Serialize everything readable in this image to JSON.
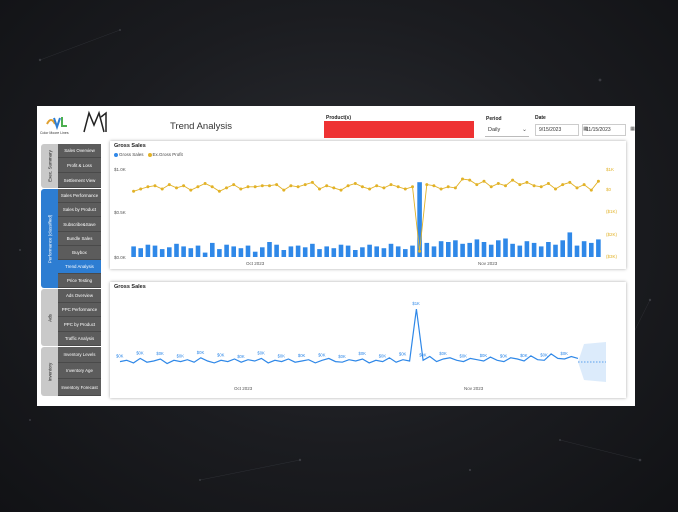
{
  "header": {
    "logo_name": "Color Moore Lines",
    "page_title": "Trend Analysis",
    "product_label": "Product(s)",
    "period_label": "Period",
    "period_value": "Daily",
    "date_label": "Date",
    "date_start": "9/15/2023",
    "date_end": "11/15/2023"
  },
  "sidebar": {
    "groups": [
      {
        "label": "Exec. Summary",
        "active": false
      },
      {
        "label": "Performance (classified)",
        "active": true
      },
      {
        "label": "Ads",
        "active": false
      },
      {
        "label": "Inventory",
        "active": false
      }
    ],
    "items": [
      {
        "label": "Sales Overview",
        "active": false
      },
      {
        "label": "Profit & Loss",
        "active": false
      },
      {
        "label": "Settlement View",
        "active": false
      },
      {
        "label": "Sales Performance",
        "active": false
      },
      {
        "label": "Sales by Product",
        "active": false
      },
      {
        "label": "Subscribe&Save",
        "active": false
      },
      {
        "label": "Bundle Sales",
        "active": false
      },
      {
        "label": "Buybox",
        "active": false
      },
      {
        "label": "Trend Analysis",
        "active": true
      },
      {
        "label": "Price Testing",
        "active": false
      },
      {
        "label": "Ads Overview",
        "active": false
      },
      {
        "label": "PPC Performance",
        "active": false
      },
      {
        "label": "PPC by Product",
        "active": false
      },
      {
        "label": "Traffic Analysis",
        "active": false
      },
      {
        "label": "Inventory Levels",
        "active": false
      },
      {
        "label": "Inventory Age",
        "active": false
      },
      {
        "label": "Inventory Forecast",
        "active": false
      }
    ]
  },
  "colors": {
    "bar": "#2f88e8",
    "profit": "#e2b227",
    "line": "#2f88e8",
    "forecast": "#dcebfb",
    "accent": "#2d7dd2",
    "product_box": "#ee3233"
  },
  "chart_data": [
    {
      "type": "bar",
      "title": "Gross Sales",
      "legend": [
        "Gross Sales",
        "Ex.Gross Profit"
      ],
      "x_ticks": [
        "Oct 2023",
        "Nov 2023"
      ],
      "y_ticks_left": [
        "$1.0K",
        "$0.5K",
        "$0.0K"
      ],
      "y_ticks_right": [
        "$1K",
        "$0",
        "($1K)",
        "($2K)",
        "($3K)"
      ],
      "ylim_left": [
        0,
        1
      ],
      "ylim_right": [
        -3,
        1
      ],
      "series": [
        {
          "name": "Gross Sales",
          "values": [
            0.12,
            0.1,
            0.14,
            0.13,
            0.09,
            0.11,
            0.15,
            0.12,
            0.1,
            0.13,
            0.05,
            0.16,
            0.09,
            0.14,
            0.12,
            0.1,
            0.13,
            0.06,
            0.11,
            0.17,
            0.14,
            0.08,
            0.12,
            0.13,
            0.11,
            0.15,
            0.09,
            0.12,
            0.1,
            0.14,
            0.13,
            0.08,
            0.11,
            0.14,
            0.12,
            0.1,
            0.15,
            0.12,
            0.09,
            0.13,
            0.85,
            0.16,
            0.12,
            0.18,
            0.17,
            0.19,
            0.15,
            0.16,
            0.2,
            0.17,
            0.14,
            0.19,
            0.21,
            0.15,
            0.13,
            0.18,
            0.16,
            0.12,
            0.17,
            0.14,
            0.19,
            0.28,
            0.13,
            0.18,
            0.16,
            0.2
          ]
        },
        {
          "name": "Ex.Gross Profit",
          "values": [
            0.0,
            0.1,
            0.2,
            0.25,
            0.1,
            0.3,
            0.15,
            0.25,
            0.05,
            0.2,
            0.35,
            0.2,
            0.0,
            0.15,
            0.3,
            0.1,
            0.2,
            0.2,
            0.25,
            0.25,
            0.3,
            0.05,
            0.25,
            0.2,
            0.3,
            0.4,
            0.1,
            0.25,
            0.15,
            0.05,
            0.25,
            0.35,
            0.2,
            0.1,
            0.25,
            0.15,
            0.3,
            0.2,
            0.1,
            0.2,
            -2.7,
            0.3,
            0.25,
            0.1,
            0.2,
            0.15,
            0.55,
            0.5,
            0.3,
            0.45,
            0.2,
            0.35,
            0.25,
            0.5,
            0.3,
            0.4,
            0.25,
            0.2,
            0.35,
            0.1,
            0.3,
            0.4,
            0.15,
            0.3,
            0.05,
            0.45
          ]
        }
      ]
    },
    {
      "type": "line",
      "title": "Gross Sales",
      "x_ticks": [
        "Oct 2023",
        "Nov 2023"
      ],
      "peak_label": "$1K",
      "point_label": "$0K",
      "series": [
        {
          "name": "Gross Sales",
          "values": [
            0.1,
            0.12,
            0.08,
            0.15,
            0.09,
            0.11,
            0.14,
            0.07,
            0.12,
            0.1,
            0.13,
            0.09,
            0.16,
            0.11,
            0.08,
            0.12,
            0.1,
            0.14,
            0.09,
            0.13,
            0.11,
            0.15,
            0.08,
            0.12,
            0.1,
            0.14,
            0.09,
            0.11,
            0.13,
            0.08,
            0.12,
            0.15,
            0.1,
            0.09,
            0.13,
            0.11,
            0.14,
            0.08,
            0.12,
            0.1,
            0.16,
            0.09,
            0.13,
            0.11,
            0.92,
            0.12,
            0.18,
            0.1,
            0.14,
            0.16,
            0.12,
            0.1,
            0.15,
            0.13,
            0.11,
            0.17,
            0.12,
            0.1,
            0.16,
            0.14,
            0.11,
            0.19,
            0.13,
            0.12,
            0.22,
            0.15,
            0.14,
            0.18,
            0.15
          ]
        }
      ],
      "forecast": true
    }
  ]
}
